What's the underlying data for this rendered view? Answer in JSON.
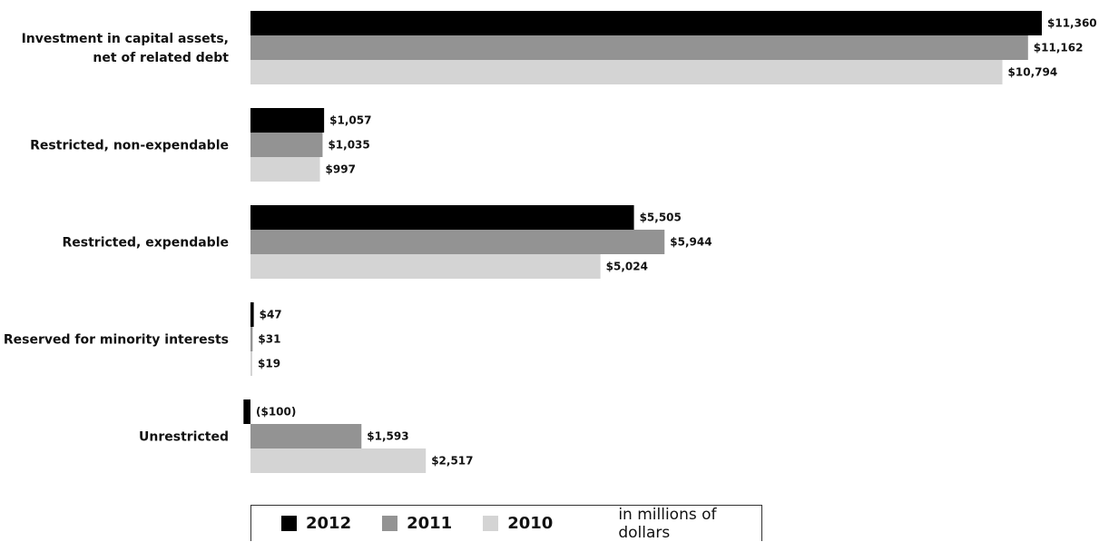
{
  "chart_data": {
    "type": "bar",
    "orientation": "horizontal",
    "categories": [
      [
        "Investment in capital assets,",
        "net of related debt"
      ],
      [
        "Restricted, non-expendable"
      ],
      [
        "Restricted, expendable"
      ],
      [
        "Reserved for minority interests"
      ],
      [
        "Unrestricted"
      ]
    ],
    "series": [
      {
        "name": "2012",
        "color": "#000000",
        "values": [
          11360,
          1057,
          5505,
          47,
          -100
        ],
        "labels": [
          "$11,360",
          "$1,057",
          "$5,505",
          "$47",
          "($100)"
        ]
      },
      {
        "name": "2011",
        "color": "#939393",
        "values": [
          11162,
          1035,
          5944,
          31,
          1593
        ],
        "labels": [
          "$11,162",
          "$1,035",
          "$5,944",
          "$31",
          "$1,593"
        ]
      },
      {
        "name": "2010",
        "color": "#d4d4d4",
        "values": [
          10794,
          997,
          5024,
          19,
          2517
        ],
        "labels": [
          "$10,794",
          "$997",
          "$5,024",
          "$19",
          "$2,517"
        ]
      }
    ],
    "xlim": [
      0,
      11360
    ],
    "grid": false,
    "legend_position": "bottom",
    "unit_note": "in millions of dollars"
  }
}
